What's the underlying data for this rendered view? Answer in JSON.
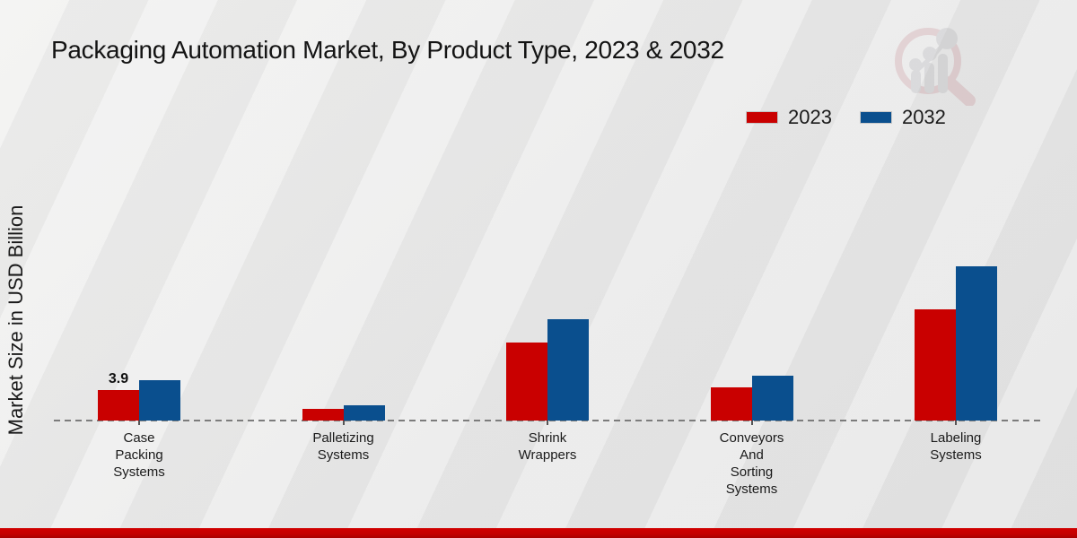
{
  "chart_data": {
    "type": "bar",
    "title": "Packaging Automation Market, By Product Type, 2023 & 2032",
    "ylabel": "Market Size in USD Billion",
    "xlabel": "",
    "categories": [
      "Case\nPacking\nSystems",
      "Palletizing\nSystems",
      "Shrink\nWrappers",
      "Conveyors\nAnd\nSorting\nSystems",
      "Labeling\nSystems"
    ],
    "series": [
      {
        "name": "2023",
        "color": "#c90000",
        "values": [
          3.9,
          1.5,
          10.0,
          4.2,
          14.3
        ]
      },
      {
        "name": "2032",
        "color": "#0a4f8e",
        "values": [
          5.2,
          2.0,
          13.0,
          5.7,
          19.8
        ]
      }
    ],
    "data_labels": [
      {
        "series_index": 0,
        "category_index": 0,
        "text": "3.9"
      }
    ],
    "ylim": [
      0,
      22
    ],
    "grid": "off",
    "legend_position": "top-right",
    "axis_line_style": "dashed-zero-baseline"
  },
  "branding": {
    "logo_icon": "magnifier-growth-chart-watermark",
    "logo_ring_color": "#c9737c",
    "logo_bar_color": "#a6a6ad",
    "footer_bar_color": "#c40000"
  }
}
